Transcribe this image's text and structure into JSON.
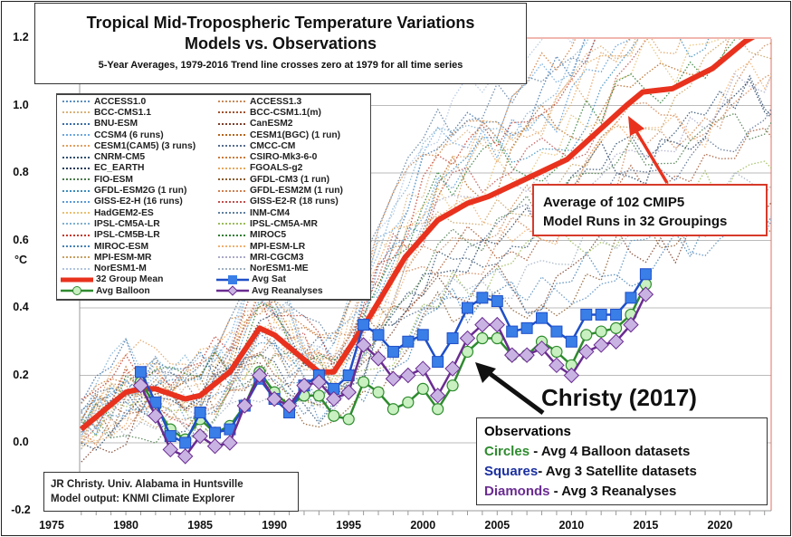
{
  "chart_data": {
    "type": "line",
    "title": "Tropical Mid-Tropospheric Temperature Variations",
    "subtitle": "Models vs. Observations",
    "subsubtitle": "5-Year Averages, 1979-2016 Trend line crosses zero at 1979 for all time series",
    "ylabel": "°C",
    "xlabel": "",
    "xlim": [
      1975,
      2025
    ],
    "ylim": [
      -0.2,
      1.2
    ],
    "x_ticks": [
      "1975",
      "1980",
      "1985",
      "1990",
      "1995",
      "2000",
      "2005",
      "2010",
      "2015",
      "2020"
    ],
    "y_ticks": [
      "1.2",
      "1.0",
      "0.8",
      "0.6",
      "0.4",
      "0.2",
      "0.0",
      "-0.2"
    ],
    "grid": true,
    "legend_position": "top-left",
    "model_legend": [
      "ACCESS1.0",
      "ACCESS1.3",
      "BCC-CMS1.1",
      "BCC-CSM1.1(m)",
      "BNU-ESM",
      "CanESM2",
      "CCSM4 (6 runs)",
      "CESM1(BGC) (1 run)",
      "CESM1(CAM5) (3 runs)",
      "CMCC-CM",
      "CNRM-CM5",
      "CSIRO-Mk3-6-0",
      "EC_EARTH",
      "FGOALS-g2",
      "FIO-ESM",
      "GFDL-CM3 (1 run)",
      "GFDL-ESM2G (1 run)",
      "GFDL-ESM2M (1 run)",
      "GISS-E2-H (16 runs)",
      "GISS-E2-R (18 runs)",
      "HadGEM2-ES",
      "INM-CM4",
      "IPSL-CM5A-LR",
      "IPSL-CM5A-MR",
      "IPSL-CM5B-LR",
      "MIROC5",
      "MIROC-ESM",
      "MPI-ESM-LR",
      "MPI-ESM-MR",
      "MRI-CGCM3",
      "NorESM1-M",
      "NorESM1-ME"
    ],
    "model_colors": [
      "#5a8fc0",
      "#c98a5a",
      "#d9b27a",
      "#a0522d",
      "#3a6ea5",
      "#7b3f2a",
      "#6fa8dc",
      "#b5651d",
      "#e0a060",
      "#556b8d",
      "#2f4f6f",
      "#cc7a3a",
      "#1f3a5a",
      "#e6a85c",
      "#4a7a4a",
      "#8b5a2b",
      "#3c8dbc",
      "#d08050",
      "#5b9bd5",
      "#c0504d",
      "#e8c070",
      "#5f7f9f",
      "#7fb0d0",
      "#9bbb59",
      "#c0392b",
      "#2e7d32",
      "#4682b4",
      "#f0b070",
      "#c8a060",
      "#a9a9c9",
      "#b0c4de",
      "#a0b0c0"
    ],
    "series": [
      {
        "name": "32 Group Mean",
        "color": "#e8321e",
        "x": [
          1977,
          1980,
          1981,
          1982,
          1984,
          1985,
          1987,
          1989,
          1990,
          1993,
          1994,
          1996.5,
          1998.8,
          2001,
          2003,
          2004.4,
          2007.3,
          2009.7,
          2011.7,
          2013.7,
          2014.8,
          2016.8,
          2019.5,
          2021.7,
          2023.3
        ],
        "y": [
          0.04,
          0.15,
          0.16,
          0.16,
          0.13,
          0.14,
          0.21,
          0.34,
          0.32,
          0.21,
          0.21,
          0.38,
          0.55,
          0.66,
          0.71,
          0.73,
          0.79,
          0.84,
          0.92,
          1.0,
          1.04,
          1.05,
          1.11,
          1.19,
          1.23
        ]
      },
      {
        "name": "Avg Sat",
        "color": "#1f4fc8",
        "marker": "square",
        "x": [
          1981,
          1982,
          1983,
          1984,
          1985,
          1986,
          1987,
          1988,
          1989,
          1990,
          1991,
          1992,
          1993,
          1994,
          1995,
          1996,
          1997,
          1998,
          1999,
          2000,
          2001,
          2002,
          2003,
          2004,
          2005,
          2006,
          2007,
          2008,
          2009,
          2010,
          2011,
          2012,
          2013,
          2014,
          2015
        ],
        "y": [
          0.21,
          0.12,
          0.02,
          0.0,
          0.09,
          0.03,
          0.04,
          0.11,
          0.19,
          0.13,
          0.09,
          0.17,
          0.2,
          0.16,
          0.2,
          0.35,
          0.32,
          0.27,
          0.3,
          0.32,
          0.24,
          0.31,
          0.4,
          0.43,
          0.42,
          0.33,
          0.34,
          0.37,
          0.33,
          0.3,
          0.38,
          0.38,
          0.38,
          0.43,
          0.5
        ]
      },
      {
        "name": "Avg Balloon",
        "color": "#2e8b2e",
        "marker": "circle",
        "x": [
          1981,
          1982,
          1983,
          1984,
          1985,
          1986,
          1987,
          1988,
          1989,
          1990,
          1991,
          1992,
          1993,
          1994,
          1995,
          1996,
          1997,
          1998,
          1999,
          2000,
          2001,
          2002,
          2003,
          2004,
          2005,
          2006,
          2007,
          2008,
          2009,
          2010,
          2011,
          2012,
          2013,
          2014,
          2015
        ],
        "y": [
          0.18,
          0.11,
          0.04,
          0.01,
          0.07,
          0.03,
          0.05,
          0.11,
          0.21,
          0.15,
          0.11,
          0.14,
          0.14,
          0.08,
          0.07,
          0.18,
          0.15,
          0.1,
          0.12,
          0.16,
          0.1,
          0.17,
          0.27,
          0.31,
          0.31,
          0.26,
          0.26,
          0.3,
          0.27,
          0.23,
          0.32,
          0.33,
          0.34,
          0.38,
          0.47
        ]
      },
      {
        "name": "Avg Reanalyses",
        "color": "#6a2c91",
        "marker": "diamond",
        "x": [
          1981,
          1982,
          1983,
          1984,
          1985,
          1986,
          1987,
          1988,
          1989,
          1990,
          1991,
          1992,
          1993,
          1994,
          1995,
          1996,
          1997,
          1998,
          1999,
          2000,
          2001,
          2002,
          2003,
          2004,
          2005,
          2006,
          2007,
          2008,
          2009,
          2010,
          2011,
          2012,
          2013,
          2014,
          2015
        ],
        "y": [
          0.17,
          0.08,
          -0.02,
          -0.04,
          0.02,
          -0.01,
          0.0,
          0.11,
          0.2,
          0.13,
          0.11,
          0.17,
          0.18,
          0.13,
          0.15,
          0.29,
          0.25,
          0.19,
          0.2,
          0.22,
          0.14,
          0.22,
          0.31,
          0.35,
          0.35,
          0.26,
          0.26,
          0.28,
          0.23,
          0.2,
          0.27,
          0.29,
          0.3,
          0.35,
          0.44
        ]
      }
    ],
    "annotations": {
      "model_avg": [
        "Average of 102 CMIP5",
        "Model Runs in 32 Groupings"
      ],
      "christy": "Christy (2017)",
      "observations_title": "Observations",
      "obs_lines": [
        {
          "key": "Circles",
          "rest": " - Avg 4 Balloon datasets",
          "color": "#2e8b2e"
        },
        {
          "key": "Squares",
          "rest": "- Avg 3 Satellite datasets",
          "color": "#1a2fa0"
        },
        {
          "key": "Diamonds",
          "rest": " - Avg 3 Reanalyses",
          "color": "#6a2c91"
        }
      ],
      "credits": [
        "JR Christy. Univ. Alabama in Huntsville",
        "Model output: KNMI Climate Explorer"
      ]
    }
  }
}
